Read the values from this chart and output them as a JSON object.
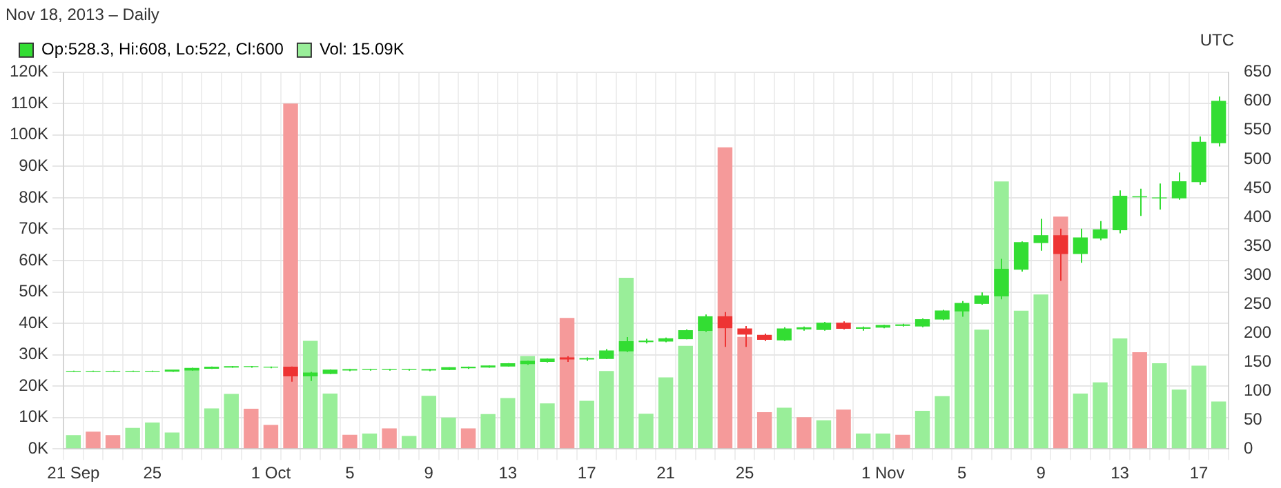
{
  "chart_data": {
    "type": "candlestick",
    "subtitle": "Nov 18, 2013 – Daily",
    "annotations": [
      "UTC"
    ],
    "categories": [
      "21 Sep",
      null,
      null,
      null,
      "25",
      null,
      null,
      null,
      null,
      null,
      "1 Oct",
      null,
      null,
      null,
      "5",
      null,
      null,
      null,
      "9",
      null,
      null,
      null,
      "13",
      null,
      null,
      null,
      "17",
      null,
      null,
      null,
      "21",
      null,
      null,
      null,
      "25",
      null,
      null,
      null,
      null,
      null,
      null,
      "1 Nov",
      null,
      null,
      null,
      "5",
      null,
      null,
      null,
      "9",
      null,
      null,
      null,
      "13",
      null,
      null,
      null,
      "17",
      null
    ],
    "series": [
      {
        "type": "candlestick",
        "name": "Op:528.3, Hi:608, Lo:522, Cl:600",
        "axis": "y2",
        "color": "#33dd33",
        "ohlc": [
          [
            134,
            135,
            133,
            134
          ],
          [
            134,
            135,
            133,
            134
          ],
          [
            134,
            135,
            133,
            134
          ],
          [
            134,
            135,
            133,
            134
          ],
          [
            134,
            135,
            133,
            134
          ],
          [
            134,
            136,
            133,
            136
          ],
          [
            136,
            140,
            135,
            139
          ],
          [
            139,
            142,
            138,
            141
          ],
          [
            141,
            143,
            140,
            142
          ],
          [
            142,
            143,
            140,
            142
          ],
          [
            141,
            142,
            139,
            141
          ],
          [
            141,
            142,
            116,
            126
          ],
          [
            126,
            133,
            117,
            131
          ],
          [
            130,
            137,
            129,
            136
          ],
          [
            136,
            138,
            134,
            137
          ],
          [
            137,
            138,
            135,
            137
          ],
          [
            137,
            138,
            135,
            137
          ],
          [
            137,
            138,
            135,
            137
          ],
          [
            136,
            138,
            134,
            137
          ],
          [
            137,
            141,
            136,
            140
          ],
          [
            140,
            142,
            138,
            141
          ],
          [
            141,
            144,
            140,
            143
          ],
          [
            143,
            148,
            142,
            147
          ],
          [
            147,
            152,
            145,
            151
          ],
          [
            151,
            156,
            149,
            155
          ],
          [
            157,
            160,
            150,
            155
          ],
          [
            155,
            158,
            152,
            156
          ],
          [
            156,
            172,
            155,
            169
          ],
          [
            169,
            193,
            167,
            185
          ],
          [
            185,
            190,
            182,
            186
          ],
          [
            186,
            192,
            184,
            190
          ],
          [
            190,
            206,
            189,
            204
          ],
          [
            204,
            232,
            202,
            228
          ],
          [
            228,
            236,
            176,
            209
          ],
          [
            207,
            212,
            176,
            198
          ],
          [
            196,
            199,
            186,
            189
          ],
          [
            188,
            210,
            186,
            207
          ],
          [
            207,
            211,
            204,
            209
          ],
          [
            206,
            219,
            204,
            217
          ],
          [
            217,
            220,
            206,
            208
          ],
          [
            208,
            211,
            204,
            209
          ],
          [
            210,
            214,
            208,
            213
          ],
          [
            213,
            216,
            211,
            214
          ],
          [
            212,
            225,
            210,
            223
          ],
          [
            224,
            240,
            222,
            238
          ],
          [
            238,
            255,
            228,
            251
          ],
          [
            251,
            270,
            249,
            264
          ],
          [
            264,
            328,
            258,
            310
          ],
          [
            310,
            358,
            306,
            356
          ],
          [
            356,
            397,
            342,
            368
          ],
          [
            368,
            380,
            290,
            337
          ],
          [
            337,
            380,
            321,
            364
          ],
          [
            364,
            393,
            360,
            378
          ],
          [
            378,
            446,
            372,
            436
          ],
          [
            435,
            449,
            402,
            435
          ],
          [
            433,
            458,
            413,
            433
          ],
          [
            433,
            477,
            430,
            461
          ],
          [
            461,
            539,
            456,
            529
          ],
          [
            528.3,
            608,
            522,
            600
          ]
        ],
        "colors": [
          "#33dd33",
          "#33dd33",
          "#33dd33",
          "#33dd33",
          "#33dd33",
          "#33dd33",
          "#33dd33",
          "#33dd33",
          "#33dd33",
          "#33dd33",
          "#33dd33",
          "#ee3333",
          "#33dd33",
          "#33dd33",
          "#33dd33",
          "#33dd33",
          "#33dd33",
          "#33dd33",
          "#33dd33",
          "#33dd33",
          "#33dd33",
          "#33dd33",
          "#33dd33",
          "#33dd33",
          "#33dd33",
          "#ee3333",
          "#33dd33",
          "#33dd33",
          "#33dd33",
          "#33dd33",
          "#33dd33",
          "#33dd33",
          "#33dd33",
          "#ee3333",
          "#ee3333",
          "#ee3333",
          "#33dd33",
          "#33dd33",
          "#33dd33",
          "#ee3333",
          "#33dd33",
          "#33dd33",
          "#33dd33",
          "#33dd33",
          "#33dd33",
          "#33dd33",
          "#33dd33",
          "#33dd33",
          "#33dd33",
          "#33dd33",
          "#ee3333",
          "#33dd33",
          "#33dd33",
          "#33dd33",
          "#33dd33",
          "#33dd33",
          "#33dd33",
          "#33dd33",
          "#33dd33"
        ]
      },
      {
        "type": "bar",
        "name": "Vol: 15.09K",
        "color": "#99ee99",
        "values": [
          4.4,
          5.5,
          4.4,
          6.7,
          8.4,
          5.2,
          25.7,
          12.9,
          17.5,
          12.8,
          7.6,
          110,
          34.4,
          17.6,
          4.5,
          4.9,
          6.5,
          4.1,
          16.9,
          10,
          6.5,
          11.1,
          16.2,
          29.6,
          14.5,
          41.7,
          15.3,
          24.8,
          54.5,
          11.2,
          22.8,
          32.8,
          37.5,
          96.1,
          35.7,
          11.7,
          13.1,
          10.1,
          9.1,
          12.5,
          4.9,
          4.9,
          4.5,
          12.1,
          16.8,
          46,
          38,
          85.2,
          44,
          49.2,
          74,
          17.6,
          21.2,
          35.2,
          30.8,
          27.3,
          18.9,
          26.5,
          15.09
        ],
        "colors": [
          "#99ee99",
          "#f59a9a",
          "#f59a9a",
          "#99ee99",
          "#99ee99",
          "#99ee99",
          "#99ee99",
          "#99ee99",
          "#99ee99",
          "#f59a9a",
          "#f59a9a",
          "#f59a9a",
          "#99ee99",
          "#99ee99",
          "#f59a9a",
          "#99ee99",
          "#f59a9a",
          "#99ee99",
          "#99ee99",
          "#99ee99",
          "#f59a9a",
          "#99ee99",
          "#99ee99",
          "#99ee99",
          "#99ee99",
          "#f59a9a",
          "#99ee99",
          "#99ee99",
          "#99ee99",
          "#99ee99",
          "#99ee99",
          "#99ee99",
          "#99ee99",
          "#f59a9a",
          "#f59a9a",
          "#f59a9a",
          "#99ee99",
          "#f59a9a",
          "#99ee99",
          "#f59a9a",
          "#99ee99",
          "#99ee99",
          "#f59a9a",
          "#99ee99",
          "#99ee99",
          "#99ee99",
          "#99ee99",
          "#99ee99",
          "#99ee99",
          "#99ee99",
          "#f59a9a",
          "#99ee99",
          "#99ee99",
          "#99ee99",
          "#f59a9a",
          "#99ee99",
          "#99ee99",
          "#99ee99",
          "#99ee99"
        ]
      }
    ],
    "ylim": [
      0,
      120
    ],
    "yticks": [
      {
        "value": 0,
        "label": "0K"
      },
      {
        "value": 10,
        "label": "10K"
      },
      {
        "value": 20,
        "label": "20K"
      },
      {
        "value": 30,
        "label": "30K"
      },
      {
        "value": 40,
        "label": "40K"
      },
      {
        "value": 50,
        "label": "50K"
      },
      {
        "value": 60,
        "label": "60K"
      },
      {
        "value": 70,
        "label": "70K"
      },
      {
        "value": 80,
        "label": "80K"
      },
      {
        "value": 90,
        "label": "90K"
      },
      {
        "value": 100,
        "label": "100K"
      },
      {
        "value": 110,
        "label": "110K"
      },
      {
        "value": 120,
        "label": "120K"
      }
    ],
    "y2lim": [
      0,
      650
    ],
    "y2ticks": [
      0,
      50,
      100,
      150,
      200,
      250,
      300,
      350,
      400,
      450,
      500,
      550,
      600,
      650
    ],
    "grid": true,
    "legend": "top left"
  }
}
